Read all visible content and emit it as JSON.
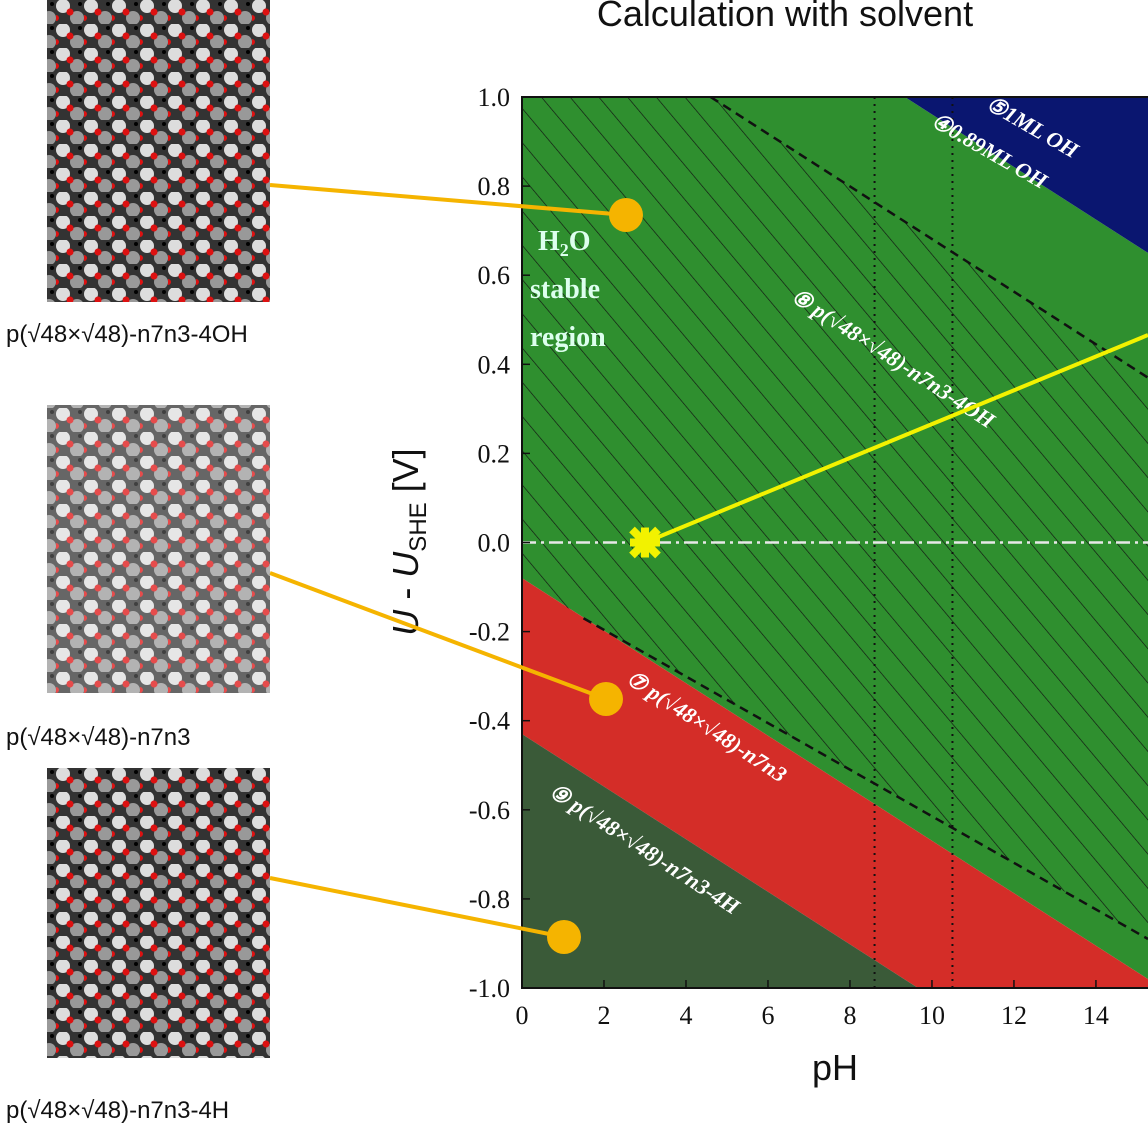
{
  "chart_data": {
    "type": "phase",
    "title": "Calculation with solvent",
    "x_label": "pH",
    "y_label_parts": [
      "U",
      " - ",
      "U",
      "SHE",
      " [V]"
    ],
    "xlim": [
      0,
      15.27
    ],
    "ylim": [
      -1,
      1
    ],
    "xticks": [
      0,
      2,
      4,
      6,
      8,
      10,
      12,
      14
    ],
    "yticks": [
      {
        "value": 1,
        "label": "1.0"
      },
      0.8,
      0.6,
      0.4,
      0.2,
      {
        "value": 0,
        "label": "0.0"
      },
      -0.2,
      -0.4,
      -0.6,
      -0.8,
      {
        "value": -1,
        "label": "-1.0"
      }
    ],
    "regions": [
      {
        "color": "#2f8f2f",
        "label": "⑧ p(√48×√48)-n7n3-4OH",
        "x": [
          0,
          9.34,
          15.27,
          15.27,
          0
        ],
        "y": [
          1,
          1,
          0.65,
          -0.98,
          -0.08
        ]
      },
      {
        "color": "#0a1670",
        "label": "⑤1ML OH",
        "x": [
          9.34,
          15.27,
          15.27
        ],
        "y": [
          1,
          1,
          0.65
        ]
      },
      {
        "color": "#d42d28",
        "label": "⑦ p(√48×√48)-n7n3",
        "x": [
          0,
          15.27,
          15.27,
          9.66,
          0
        ],
        "y": [
          -0.08,
          -0.98,
          -1,
          -1,
          -0.43
        ]
      },
      {
        "color": "#3a5a38",
        "label": "⑨ p(√48×√48)-n7n3-4H",
        "x": [
          0,
          9.66,
          0
        ],
        "y": [
          -0.43,
          -1,
          -1
        ]
      }
    ],
    "hatched_region": {
      "x": [
        0,
        4.6,
        15.27,
        15.27,
        1.5,
        0
      ],
      "y": [
        1,
        1,
        0.37,
        -0.89,
        -0.17,
        -0.08
      ]
    },
    "dashed_lines": [
      {
        "label": "④0.89ML OH",
        "x": [
          4.6,
          15.27
        ],
        "y": [
          1,
          0.37
        ]
      },
      {
        "x": [
          1.5,
          15.27
        ],
        "y": [
          -0.17,
          -0.89
        ]
      }
    ],
    "dotted_ph": [
      8.6,
      10.5
    ],
    "reference_u": 0,
    "marker": {
      "x": 3,
      "y": 0,
      "color": "#f2f200"
    },
    "water_label": [
      "H",
      "2",
      "O"
    ],
    "stable_label": [
      "stable",
      "region"
    ]
  },
  "structures": [
    {
      "caption": "p(√48×√48)-n7n3-4OH"
    },
    {
      "caption": "p(√48×√48)-n7n3"
    },
    {
      "caption": "p(√48×√48)-n7n3-4H"
    }
  ]
}
